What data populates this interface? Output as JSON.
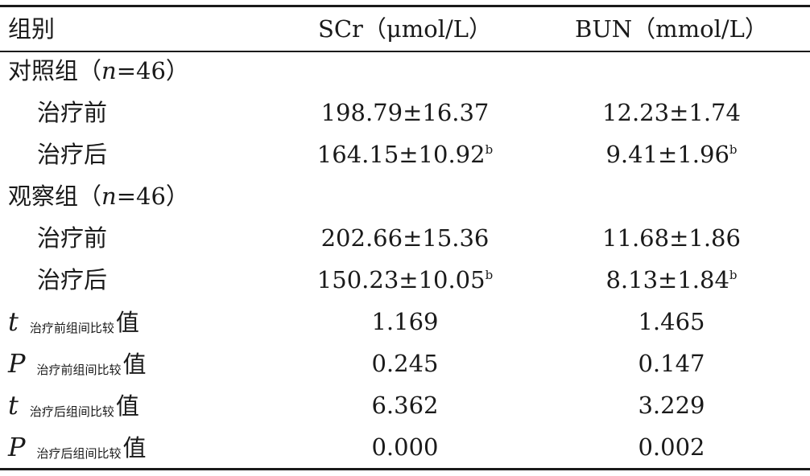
{
  "header": {
    "group": "组别",
    "scr": "SCr（μmol/L）",
    "bun": "BUN（mmol/L）"
  },
  "groups": [
    {
      "label_prefix": "对照组（",
      "n_var": "n",
      "n_value": "=46）",
      "rows": [
        {
          "label": "治疗前",
          "scr": "198.79±16.37",
          "scr_sup": "",
          "bun": "12.23±1.74",
          "bun_sup": ""
        },
        {
          "label": "治疗后",
          "scr": "164.15±10.92",
          "scr_sup": "b",
          "bun": "9.41±1.96",
          "bun_sup": "b"
        }
      ]
    },
    {
      "label_prefix": "观察组（",
      "n_var": "n",
      "n_value": "=46）",
      "rows": [
        {
          "label": "治疗前",
          "scr": "202.66±15.36",
          "scr_sup": "",
          "bun": "11.68±1.86",
          "bun_sup": ""
        },
        {
          "label": "治疗后",
          "scr": "150.23±10.05",
          "scr_sup": "b",
          "bun": "8.13±1.84",
          "bun_sup": "b"
        }
      ]
    }
  ],
  "stats": [
    {
      "symbol": "t",
      "subscript": "治疗前组间比较",
      "suffix": "值",
      "scr": "1.169",
      "bun": "1.465"
    },
    {
      "symbol": "P",
      "subscript": "治疗前组间比较",
      "suffix": "值",
      "scr": "0.245",
      "bun": "0.147"
    },
    {
      "symbol": "t",
      "subscript": "治疗后组间比较",
      "suffix": "值",
      "scr": "6.362",
      "bun": "3.229"
    },
    {
      "symbol": "P",
      "subscript": "治疗后组间比较",
      "suffix": "值",
      "scr": "0.000",
      "bun": "0.002"
    }
  ]
}
